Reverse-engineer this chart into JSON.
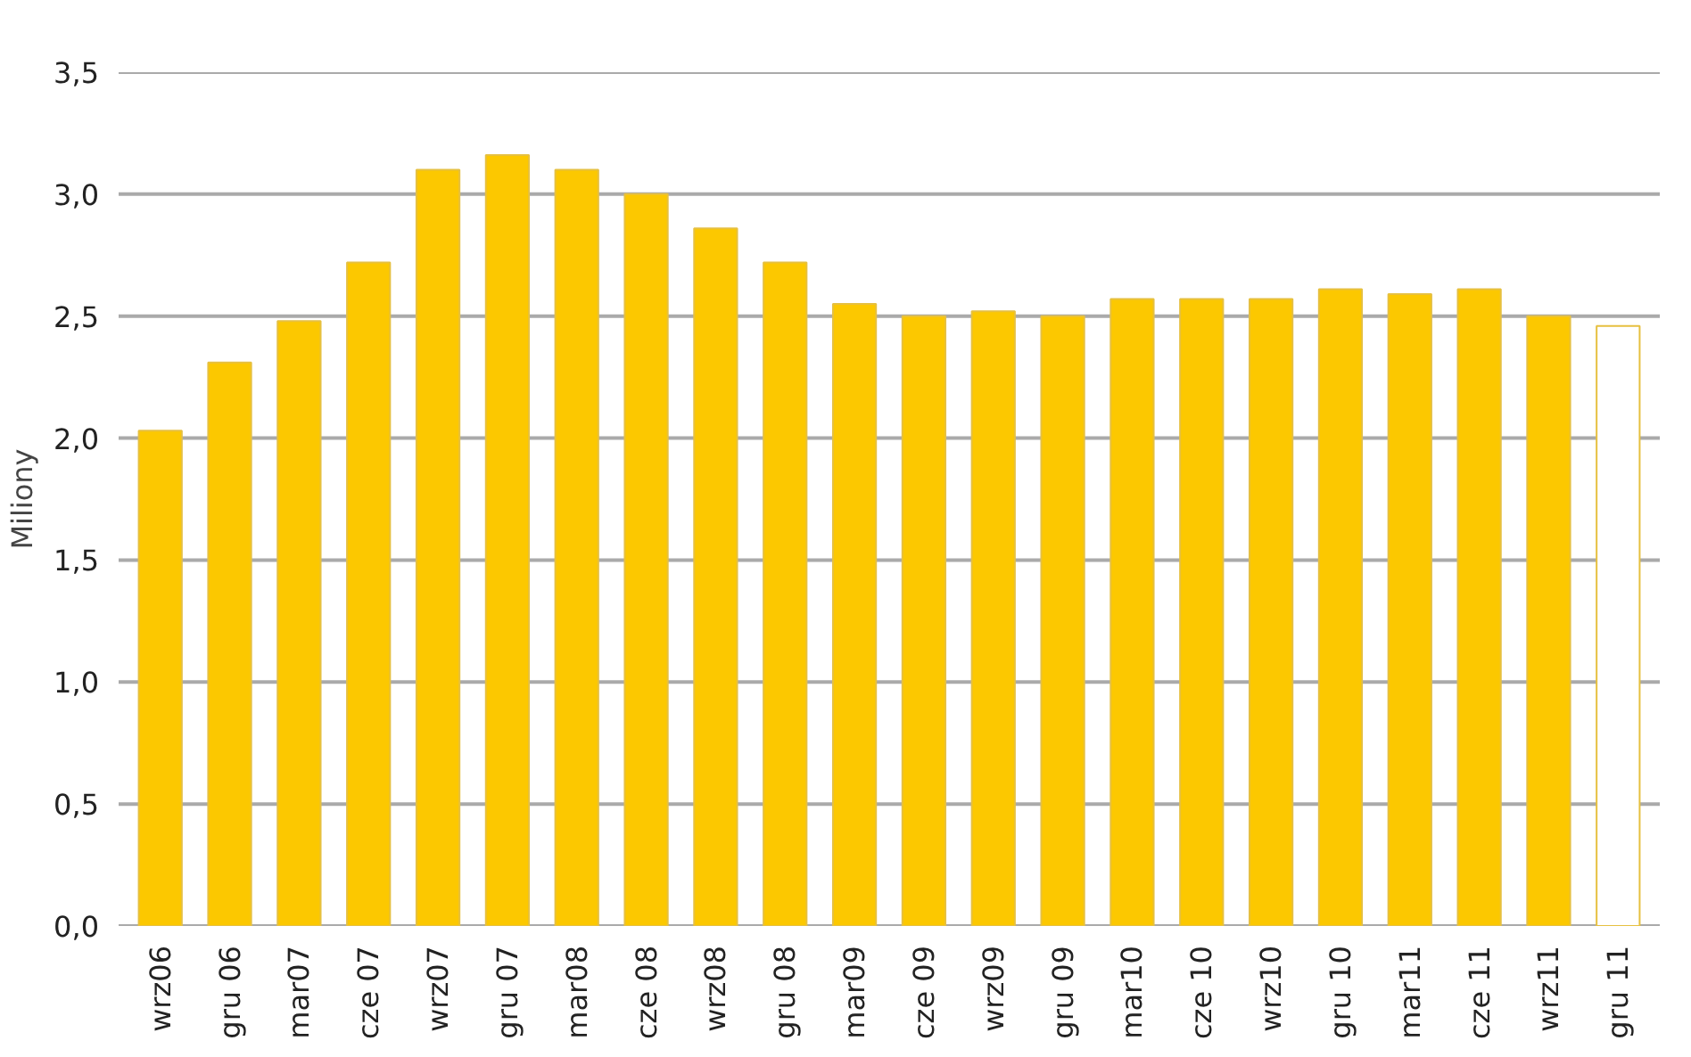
{
  "chart_data": {
    "type": "bar",
    "ylabel": "Miliony",
    "categories": [
      "wrz06",
      "gru 06",
      "mar07",
      "cze 07",
      "wrz07",
      "gru 07",
      "mar08",
      "cze 08",
      "wrz08",
      "gru 08",
      "mar09",
      "cze 09",
      "wrz09",
      "gru 09",
      "mar10",
      "cze 10",
      "wrz10",
      "gru 10",
      "mar11",
      "cze 11",
      "wrz11",
      "gru 11"
    ],
    "values": [
      2.03,
      2.31,
      2.48,
      2.72,
      3.1,
      3.16,
      3.1,
      3.0,
      2.86,
      2.72,
      2.55,
      2.5,
      2.52,
      2.5,
      2.57,
      2.57,
      2.57,
      2.61,
      2.59,
      2.61,
      2.5,
      2.46
    ],
    "colors": [
      "#fcc800",
      "#fcc800",
      "#fcc800",
      "#fcc800",
      "#fcc800",
      "#fcc800",
      "#fcc800",
      "#fcc800",
      "#fcc800",
      "#fcc800",
      "#fcc800",
      "#fcc800",
      "#fcc800",
      "#fcc800",
      "#fcc800",
      "#fcc800",
      "#fcc800",
      "#fcc800",
      "#fcc800",
      "#fcc800",
      "#fcc800",
      "#ffffff"
    ],
    "ylim": [
      0,
      3.5
    ],
    "yticks": [
      {
        "value": 0,
        "label": "0,0"
      },
      {
        "value": 0.5,
        "label": "0,5"
      },
      {
        "value": 1,
        "label": "1,0"
      },
      {
        "value": 1.5,
        "label": "1,5"
      },
      {
        "value": 2,
        "label": "2,0"
      },
      {
        "value": 2.5,
        "label": "2,5"
      },
      {
        "value": 3,
        "label": "3,0"
      },
      {
        "value": 3.5,
        "label": "3,5"
      }
    ],
    "grid": "y"
  }
}
